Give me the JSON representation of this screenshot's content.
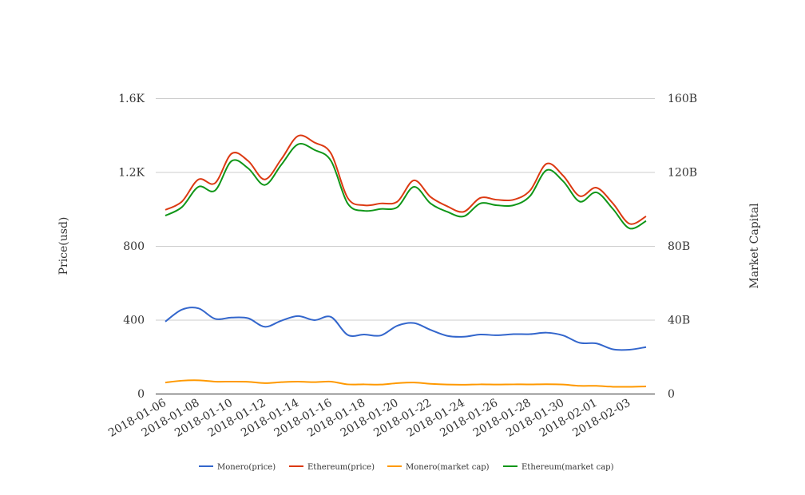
{
  "chart_data": {
    "type": "line",
    "x": [
      "2018-01-06",
      "2018-01-07",
      "2018-01-08",
      "2018-01-09",
      "2018-01-10",
      "2018-01-11",
      "2018-01-12",
      "2018-01-13",
      "2018-01-14",
      "2018-01-15",
      "2018-01-16",
      "2018-01-17",
      "2018-01-18",
      "2018-01-19",
      "2018-01-20",
      "2018-01-21",
      "2018-01-22",
      "2018-01-23",
      "2018-01-24",
      "2018-01-25",
      "2018-01-26",
      "2018-01-27",
      "2018-01-28",
      "2018-01-29",
      "2018-01-30",
      "2018-01-31",
      "2018-02-01",
      "2018-02-02",
      "2018-02-03",
      "2018-02-04"
    ],
    "x_tick_labels": [
      "2018-01-06",
      "2018-01-08",
      "2018-01-10",
      "2018-01-12",
      "2018-01-14",
      "2018-01-16",
      "2018-01-18",
      "2018-01-20",
      "2018-01-22",
      "2018-01-24",
      "2018-01-26",
      "2018-01-28",
      "2018-01-30",
      "2018-02-01",
      "2018-02-03"
    ],
    "ylabel": "Price(usd)",
    "ylabel_right": "Market Capital",
    "ylim": [
      0,
      1600
    ],
    "ylim_right": [
      0,
      160
    ],
    "y_tick_labels": [
      "0",
      "400",
      "800",
      "1.2K",
      "1.6K"
    ],
    "y_right_tick_labels": [
      "0",
      "40B",
      "80B",
      "120B",
      "160B"
    ],
    "grid": true,
    "legend_position": "bottom",
    "series": [
      {
        "name": "Monero(price)",
        "axis": "left",
        "color": "#3366cc",
        "values": [
          390,
          455,
          462,
          405,
          412,
          408,
          362,
          395,
          420,
          398,
          415,
          318,
          320,
          315,
          368,
          382,
          345,
          313,
          308,
          320,
          316,
          322,
          322,
          330,
          315,
          275,
          272,
          240,
          238,
          252
        ]
      },
      {
        "name": "Ethereum(price)",
        "axis": "left",
        "color": "#dc3912",
        "values": [
          995,
          1040,
          1160,
          1140,
          1300,
          1260,
          1160,
          1270,
          1395,
          1360,
          1300,
          1060,
          1020,
          1030,
          1040,
          1155,
          1065,
          1015,
          985,
          1060,
          1050,
          1050,
          1100,
          1245,
          1180,
          1070,
          1115,
          1030,
          920,
          960
        ]
      },
      {
        "name": "Monero(market cap)",
        "axis": "right",
        "color": "#ff9900",
        "values": [
          6.0,
          7.0,
          7.2,
          6.5,
          6.5,
          6.4,
          5.7,
          6.2,
          6.5,
          6.2,
          6.5,
          5.0,
          5.0,
          4.9,
          5.7,
          6.0,
          5.3,
          4.9,
          4.8,
          5.0,
          4.9,
          5.0,
          5.0,
          5.1,
          4.9,
          4.2,
          4.2,
          3.7,
          3.7,
          3.9
        ]
      },
      {
        "name": "Ethereum(market cap)",
        "axis": "right",
        "color": "#109618",
        "values": [
          96.4,
          101,
          112,
          110,
          126,
          122,
          113,
          124,
          135,
          132,
          126,
          103,
          99,
          100,
          101,
          112,
          103,
          98.5,
          96,
          103,
          102,
          102,
          107,
          121,
          115,
          104,
          109,
          100,
          89.5,
          93.5
        ]
      }
    ]
  }
}
